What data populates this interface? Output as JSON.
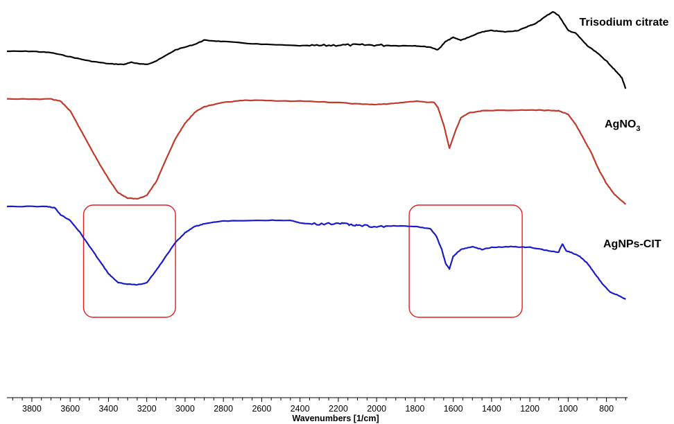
{
  "chart_data": {
    "type": "line",
    "xlabel": "Wavenumbers [1/cm]",
    "xlim": [
      3930,
      690
    ],
    "x_ticks": [
      3800,
      3600,
      3400,
      3200,
      3000,
      2800,
      2600,
      2400,
      2200,
      2000,
      1800,
      1600,
      1400,
      1200,
      1000,
      800
    ],
    "grid": false,
    "legend": "inline labels at right",
    "series": [
      {
        "name": "Trisodium citrate",
        "color": "#000000",
        "points": [
          [
            3930,
            74
          ],
          [
            3800,
            74
          ],
          [
            3700,
            76
          ],
          [
            3600,
            82
          ],
          [
            3500,
            88
          ],
          [
            3400,
            92
          ],
          [
            3320,
            93
          ],
          [
            3280,
            90
          ],
          [
            3240,
            92
          ],
          [
            3200,
            93
          ],
          [
            3150,
            88
          ],
          [
            3050,
            72
          ],
          [
            2950,
            64
          ],
          [
            2900,
            58
          ],
          [
            2800,
            60
          ],
          [
            2600,
            64
          ],
          [
            2400,
            66
          ],
          [
            2300,
            66
          ],
          [
            2200,
            65
          ],
          [
            2100,
            65
          ],
          [
            2000,
            65
          ],
          [
            1900,
            66
          ],
          [
            1800,
            66
          ],
          [
            1720,
            68
          ],
          [
            1680,
            72
          ],
          [
            1640,
            60
          ],
          [
            1600,
            54
          ],
          [
            1560,
            58
          ],
          [
            1520,
            54
          ],
          [
            1450,
            46
          ],
          [
            1400,
            44
          ],
          [
            1330,
            46
          ],
          [
            1260,
            44
          ],
          [
            1210,
            38
          ],
          [
            1170,
            34
          ],
          [
            1120,
            24
          ],
          [
            1080,
            17
          ],
          [
            1050,
            22
          ],
          [
            1000,
            44
          ],
          [
            960,
            48
          ],
          [
            900,
            66
          ],
          [
            850,
            76
          ],
          [
            800,
            88
          ],
          [
            760,
            100
          ],
          [
            720,
            112
          ],
          [
            700,
            128
          ]
        ]
      },
      {
        "name": "AgNO3",
        "label_main": "AgNO",
        "label_sub": "3",
        "color": "#c0392b",
        "points": [
          [
            3930,
            143
          ],
          [
            3700,
            143
          ],
          [
            3650,
            146
          ],
          [
            3600,
            160
          ],
          [
            3550,
            185
          ],
          [
            3500,
            210
          ],
          [
            3450,
            235
          ],
          [
            3400,
            258
          ],
          [
            3350,
            278
          ],
          [
            3300,
            286
          ],
          [
            3250,
            287
          ],
          [
            3200,
            282
          ],
          [
            3150,
            262
          ],
          [
            3100,
            230
          ],
          [
            3050,
            200
          ],
          [
            3000,
            178
          ],
          [
            2950,
            162
          ],
          [
            2900,
            154
          ],
          [
            2800,
            148
          ],
          [
            2700,
            145
          ],
          [
            2600,
            145
          ],
          [
            2400,
            146
          ],
          [
            2200,
            148
          ],
          [
            2100,
            150
          ],
          [
            2000,
            151
          ],
          [
            1900,
            149
          ],
          [
            1800,
            146
          ],
          [
            1700,
            148
          ],
          [
            1680,
            155
          ],
          [
            1650,
            180
          ],
          [
            1620,
            214
          ],
          [
            1590,
            190
          ],
          [
            1560,
            170
          ],
          [
            1520,
            163
          ],
          [
            1450,
            160
          ],
          [
            1300,
            159
          ],
          [
            1150,
            159
          ],
          [
            1050,
            160
          ],
          [
            1000,
            165
          ],
          [
            960,
            180
          ],
          [
            920,
            200
          ],
          [
            880,
            220
          ],
          [
            840,
            245
          ],
          [
            800,
            265
          ],
          [
            760,
            280
          ],
          [
            700,
            295
          ]
        ]
      },
      {
        "name": "AgNPs-CIT",
        "color": "#1a1acc",
        "points": [
          [
            3930,
            298
          ],
          [
            3720,
            298
          ],
          [
            3680,
            300
          ],
          [
            3650,
            310
          ],
          [
            3600,
            318
          ],
          [
            3550,
            335
          ],
          [
            3500,
            355
          ],
          [
            3450,
            375
          ],
          [
            3400,
            395
          ],
          [
            3350,
            408
          ],
          [
            3300,
            410
          ],
          [
            3250,
            411
          ],
          [
            3200,
            408
          ],
          [
            3150,
            390
          ],
          [
            3100,
            370
          ],
          [
            3050,
            350
          ],
          [
            3000,
            336
          ],
          [
            2950,
            327
          ],
          [
            2900,
            323
          ],
          [
            2800,
            319
          ],
          [
            2600,
            318
          ],
          [
            2450,
            318
          ],
          [
            2400,
            322
          ],
          [
            2300,
            324
          ],
          [
            2200,
            322
          ],
          [
            2150,
            324
          ],
          [
            2100,
            325
          ],
          [
            2000,
            327
          ],
          [
            1900,
            326
          ],
          [
            1800,
            327
          ],
          [
            1720,
            330
          ],
          [
            1690,
            340
          ],
          [
            1660,
            360
          ],
          [
            1640,
            380
          ],
          [
            1620,
            388
          ],
          [
            1600,
            370
          ],
          [
            1560,
            360
          ],
          [
            1500,
            356
          ],
          [
            1450,
            360
          ],
          [
            1400,
            357
          ],
          [
            1300,
            356
          ],
          [
            1200,
            357
          ],
          [
            1100,
            362
          ],
          [
            1050,
            364
          ],
          [
            1030,
            352
          ],
          [
            1010,
            362
          ],
          [
            980,
            365
          ],
          [
            940,
            370
          ],
          [
            900,
            380
          ],
          [
            860,
            395
          ],
          [
            820,
            410
          ],
          [
            780,
            422
          ],
          [
            740,
            426
          ],
          [
            700,
            432
          ]
        ]
      }
    ],
    "highlight_boxes": [
      {
        "x_range": [
          3530,
          3050
        ],
        "y_range": [
          296,
          458
        ],
        "color": "#e02020"
      },
      {
        "x_range": [
          1830,
          1240
        ],
        "y_range": [
          296,
          458
        ],
        "color": "#e02020"
      }
    ]
  }
}
